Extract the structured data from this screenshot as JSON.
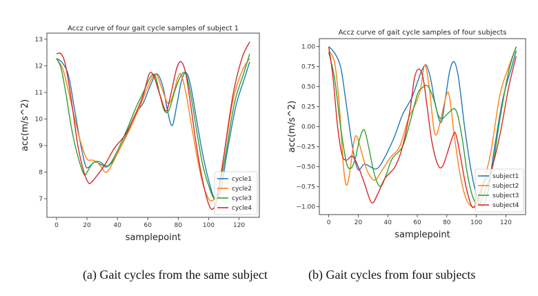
{
  "chart_data": [
    {
      "type": "line",
      "title": "Accz curve of four gait cycle samples of subject 1",
      "xlabel": "samplepoint",
      "ylabel": "acc(m/s^2)",
      "xlim": [
        -6.35,
        133.35
      ],
      "ylim": [
        6.3,
        13.23
      ],
      "xticks": [
        0,
        20,
        40,
        60,
        80,
        100,
        120
      ],
      "yticks": [
        7,
        8,
        9,
        10,
        11,
        12,
        13
      ],
      "ytick_labels": [
        "7",
        "8",
        "9",
        "10",
        "11",
        "12",
        "13"
      ],
      "legend_placement": "lower-right",
      "grid": false,
      "series": [
        {
          "name": "cycle1",
          "color": "#1f77b4",
          "points": [
            [
              0,
              12.28
            ],
            [
              4,
              12.1
            ],
            [
              8,
              11.6
            ],
            [
              12,
              10.3
            ],
            [
              16,
              9.0
            ],
            [
              19,
              8.25
            ],
            [
              21,
              8.18
            ],
            [
              25,
              8.38
            ],
            [
              29,
              8.3
            ],
            [
              33,
              8.2
            ],
            [
              38,
              8.5
            ],
            [
              45,
              9.3
            ],
            [
              52,
              10.2
            ],
            [
              57,
              10.6
            ],
            [
              62,
              11.3
            ],
            [
              66,
              11.7
            ],
            [
              70,
              11.2
            ],
            [
              73,
              10.3
            ],
            [
              76,
              9.75
            ],
            [
              79,
              10.5
            ],
            [
              82,
              11.4
            ],
            [
              85,
              11.75
            ],
            [
              88,
              11.3
            ],
            [
              92,
              10.0
            ],
            [
              96,
              8.7
            ],
            [
              100,
              7.7
            ],
            [
              104,
              7.0
            ],
            [
              108,
              7.3
            ],
            [
              112,
              8.7
            ],
            [
              118,
              10.5
            ],
            [
              124,
              11.6
            ],
            [
              127,
              12.15
            ]
          ]
        },
        {
          "name": "cycle2",
          "color": "#ff7f0e",
          "points": [
            [
              0,
              12.25
            ],
            [
              4,
              11.9
            ],
            [
              8,
              11.0
            ],
            [
              12,
              10.0
            ],
            [
              16,
              9.1
            ],
            [
              20,
              8.5
            ],
            [
              24,
              8.45
            ],
            [
              28,
              8.3
            ],
            [
              32,
              8.0
            ],
            [
              35,
              8.15
            ],
            [
              40,
              8.7
            ],
            [
              48,
              9.6
            ],
            [
              55,
              10.5
            ],
            [
              60,
              11.2
            ],
            [
              65,
              11.7
            ],
            [
              69,
              11.2
            ],
            [
              73,
              10.6
            ],
            [
              76,
              10.8
            ],
            [
              80,
              11.6
            ],
            [
              82,
              11.65
            ],
            [
              85,
              11.0
            ],
            [
              88,
              10.0
            ],
            [
              92,
              8.7
            ],
            [
              96,
              7.6
            ],
            [
              100,
              7.0
            ],
            [
              103,
              6.95
            ],
            [
              106,
              7.3
            ],
            [
              110,
              8.6
            ],
            [
              116,
              10.7
            ],
            [
              122,
              11.8
            ],
            [
              127,
              12.28
            ]
          ]
        },
        {
          "name": "cycle3",
          "color": "#2ca02c",
          "points": [
            [
              0,
              12.28
            ],
            [
              3,
              11.9
            ],
            [
              6,
              11.0
            ],
            [
              10,
              9.6
            ],
            [
              14,
              8.6
            ],
            [
              18,
              7.92
            ],
            [
              20,
              8.0
            ],
            [
              24,
              8.35
            ],
            [
              28,
              8.4
            ],
            [
              32,
              8.25
            ],
            [
              35,
              8.3
            ],
            [
              40,
              8.8
            ],
            [
              47,
              9.7
            ],
            [
              52,
              10.4
            ],
            [
              57,
              11.0
            ],
            [
              62,
              11.6
            ],
            [
              65,
              11.6
            ],
            [
              68,
              10.9
            ],
            [
              71,
              10.3
            ],
            [
              74,
              10.35
            ],
            [
              78,
              11.1
            ],
            [
              82,
              11.65
            ],
            [
              85,
              11.7
            ],
            [
              88,
              11.0
            ],
            [
              92,
              9.6
            ],
            [
              96,
              8.3
            ],
            [
              100,
              7.5
            ],
            [
              104,
              6.98
            ],
            [
              107,
              7.4
            ],
            [
              111,
              8.6
            ],
            [
              117,
              10.6
            ],
            [
              123,
              11.7
            ],
            [
              127,
              12.45
            ]
          ]
        },
        {
          "name": "cycle4",
          "color": "#d62728",
          "points": [
            [
              0,
              12.45
            ],
            [
              3,
              12.45
            ],
            [
              6,
              12.0
            ],
            [
              10,
              10.6
            ],
            [
              14,
              9.0
            ],
            [
              18,
              8.0
            ],
            [
              21,
              7.6
            ],
            [
              23,
              7.62
            ],
            [
              27,
              7.9
            ],
            [
              32,
              8.3
            ],
            [
              38,
              8.9
            ],
            [
              45,
              9.4
            ],
            [
              52,
              10.2
            ],
            [
              57,
              10.9
            ],
            [
              61,
              11.7
            ],
            [
              64,
              11.6
            ],
            [
              68,
              10.9
            ],
            [
              72,
              10.3
            ],
            [
              75,
              10.9
            ],
            [
              79,
              11.9
            ],
            [
              82,
              12.15
            ],
            [
              85,
              11.7
            ],
            [
              88,
              10.6
            ],
            [
              92,
              9.0
            ],
            [
              96,
              7.7
            ],
            [
              100,
              6.8
            ],
            [
              103,
              6.62
            ],
            [
              106,
              7.1
            ],
            [
              110,
              8.6
            ],
            [
              116,
              10.9
            ],
            [
              122,
              12.3
            ],
            [
              127,
              12.9
            ]
          ]
        }
      ],
      "caption": "(a)  Gait cycles from the same subject"
    },
    {
      "type": "line",
      "title": "Accz curve of gait cycle samples of four subjects",
      "xlabel": "samplepoint",
      "ylabel": "acc(m/s^2)",
      "xlim": [
        -6.35,
        133.35
      ],
      "ylim": [
        -1.1,
        1.1
      ],
      "xticks": [
        0,
        20,
        40,
        60,
        80,
        100,
        120
      ],
      "yticks": [
        -1.0,
        -0.75,
        -0.5,
        -0.25,
        0.0,
        0.25,
        0.5,
        0.75,
        1.0
      ],
      "ytick_labels": [
        "−1.00",
        "−0.75",
        "−0.50",
        "−0.25",
        "0.00",
        "0.25",
        "0.50",
        "0.75",
        "1.00"
      ],
      "legend_placement": "lower-right",
      "grid": false,
      "series": [
        {
          "name": "subject1",
          "color": "#1f77b4",
          "points": [
            [
              0,
              1.0
            ],
            [
              4,
              0.92
            ],
            [
              8,
              0.75
            ],
            [
              11,
              0.4
            ],
            [
              14,
              0.0
            ],
            [
              17,
              -0.35
            ],
            [
              20,
              -0.54
            ],
            [
              24,
              -0.47
            ],
            [
              28,
              -0.5
            ],
            [
              32,
              -0.53
            ],
            [
              36,
              -0.45
            ],
            [
              44,
              -0.15
            ],
            [
              50,
              0.15
            ],
            [
              56,
              0.35
            ],
            [
              60,
              0.55
            ],
            [
              63,
              0.7
            ],
            [
              66,
              0.77
            ],
            [
              69,
              0.6
            ],
            [
              72,
              0.3
            ],
            [
              76,
              0.05
            ],
            [
              79,
              0.35
            ],
            [
              82,
              0.7
            ],
            [
              85,
              0.81
            ],
            [
              88,
              0.6
            ],
            [
              92,
              0.0
            ],
            [
              96,
              -0.5
            ],
            [
              100,
              -0.85
            ],
            [
              104,
              -1.0
            ],
            [
              108,
              -0.8
            ],
            [
              112,
              -0.3
            ],
            [
              118,
              0.35
            ],
            [
              124,
              0.75
            ],
            [
              127,
              0.95
            ]
          ]
        },
        {
          "name": "subject2",
          "color": "#ff7f0e",
          "points": [
            [
              0,
              0.95
            ],
            [
              4,
              0.8
            ],
            [
              7,
              0.3
            ],
            [
              10,
              -0.5
            ],
            [
              12,
              -0.73
            ],
            [
              14,
              -0.6
            ],
            [
              17,
              -0.2
            ],
            [
              19,
              -0.12
            ],
            [
              22,
              -0.3
            ],
            [
              26,
              -0.55
            ],
            [
              31,
              -0.67
            ],
            [
              36,
              -0.55
            ],
            [
              42,
              -0.38
            ],
            [
              48,
              -0.25
            ],
            [
              54,
              0.1
            ],
            [
              58,
              0.25
            ],
            [
              62,
              0.45
            ],
            [
              65,
              0.77
            ],
            [
              68,
              0.5
            ],
            [
              71,
              0.0
            ],
            [
              73,
              -0.1
            ],
            [
              76,
              0.1
            ],
            [
              80,
              0.41
            ],
            [
              82,
              0.35
            ],
            [
              85,
              -0.1
            ],
            [
              89,
              -0.6
            ],
            [
              93,
              -0.9
            ],
            [
              97,
              -1.0
            ],
            [
              101,
              -0.97
            ],
            [
              105,
              -0.7
            ],
            [
              110,
              -0.3
            ],
            [
              116,
              0.4
            ],
            [
              122,
              0.75
            ],
            [
              127,
              1.0
            ]
          ]
        },
        {
          "name": "subject3",
          "color": "#2ca02c",
          "points": [
            [
              0,
              0.93
            ],
            [
              4,
              0.6
            ],
            [
              8,
              0.0
            ],
            [
              12,
              -0.45
            ],
            [
              15,
              -0.52
            ],
            [
              18,
              -0.4
            ],
            [
              21,
              -0.15
            ],
            [
              24,
              -0.04
            ],
            [
              27,
              -0.25
            ],
            [
              31,
              -0.6
            ],
            [
              35,
              -0.75
            ],
            [
              39,
              -0.6
            ],
            [
              43,
              -0.4
            ],
            [
              50,
              -0.25
            ],
            [
              55,
              0.05
            ],
            [
              60,
              0.4
            ],
            [
              63,
              0.48
            ],
            [
              67,
              0.51
            ],
            [
              71,
              0.35
            ],
            [
              74,
              0.15
            ],
            [
              77,
              0.1
            ],
            [
              81,
              0.17
            ],
            [
              86,
              0.21
            ],
            [
              90,
              -0.1
            ],
            [
              94,
              -0.6
            ],
            [
              98,
              -0.9
            ],
            [
              102,
              -0.97
            ],
            [
              106,
              -0.8
            ],
            [
              111,
              -0.5
            ],
            [
              116,
              0.1
            ],
            [
              122,
              0.7
            ],
            [
              127,
              1.0
            ]
          ]
        },
        {
          "name": "subject4",
          "color": "#d62728",
          "points": [
            [
              0,
              1.0
            ],
            [
              3,
              0.6
            ],
            [
              6,
              0.0
            ],
            [
              9,
              -0.35
            ],
            [
              12,
              -0.42
            ],
            [
              16,
              -0.37
            ],
            [
              20,
              -0.5
            ],
            [
              24,
              -0.7
            ],
            [
              29,
              -0.95
            ],
            [
              33,
              -0.85
            ],
            [
              38,
              -0.65
            ],
            [
              45,
              -0.5
            ],
            [
              50,
              -0.25
            ],
            [
              55,
              0.2
            ],
            [
              58,
              0.6
            ],
            [
              61,
              0.72
            ],
            [
              64,
              0.6
            ],
            [
              67,
              0.2
            ],
            [
              70,
              -0.2
            ],
            [
              74,
              -0.48
            ],
            [
              77,
              -0.5
            ],
            [
              80,
              -0.35
            ],
            [
              84,
              -0.12
            ],
            [
              86,
              -0.09
            ],
            [
              89,
              -0.35
            ],
            [
              93,
              -0.75
            ],
            [
              97,
              -1.0
            ],
            [
              100,
              -0.95
            ],
            [
              105,
              -0.7
            ],
            [
              110,
              -0.55
            ],
            [
              116,
              -0.1
            ],
            [
              122,
              0.5
            ],
            [
              127,
              0.88
            ]
          ]
        }
      ],
      "caption": "(b) Gait cycles from four subjects"
    }
  ]
}
